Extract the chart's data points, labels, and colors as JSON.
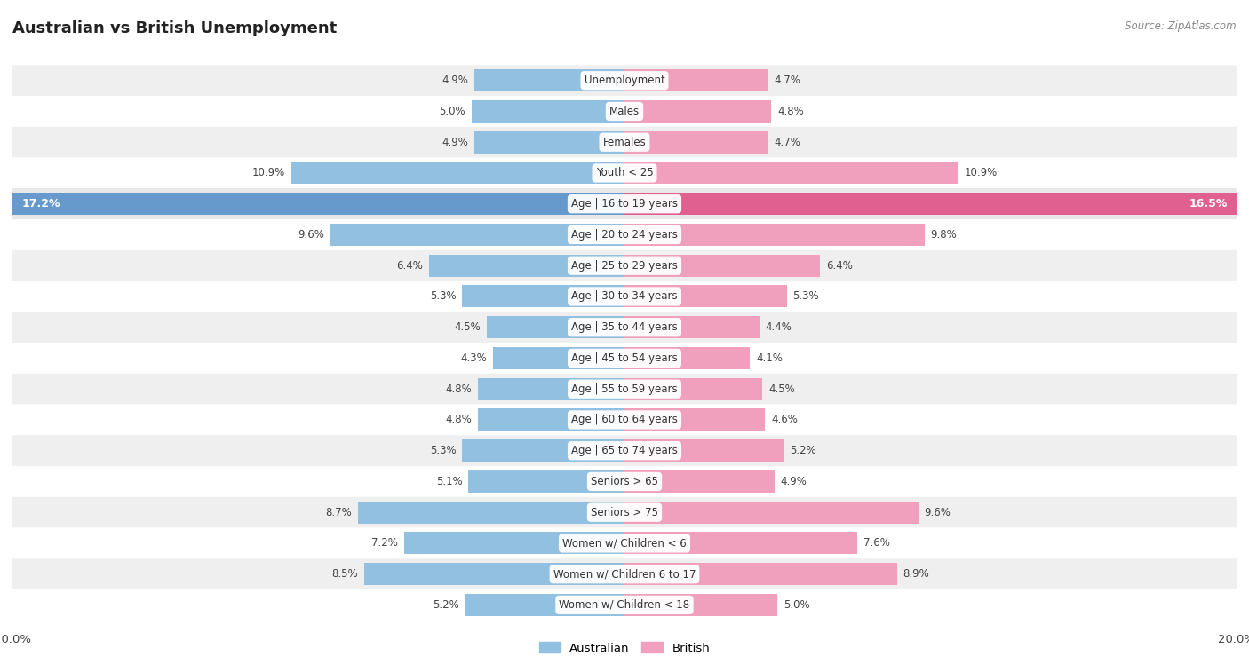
{
  "title": "Australian vs British Unemployment",
  "source": "Source: ZipAtlas.com",
  "categories": [
    "Unemployment",
    "Males",
    "Females",
    "Youth < 25",
    "Age | 16 to 19 years",
    "Age | 20 to 24 years",
    "Age | 25 to 29 years",
    "Age | 30 to 34 years",
    "Age | 35 to 44 years",
    "Age | 45 to 54 years",
    "Age | 55 to 59 years",
    "Age | 60 to 64 years",
    "Age | 65 to 74 years",
    "Seniors > 65",
    "Seniors > 75",
    "Women w/ Children < 6",
    "Women w/ Children 6 to 17",
    "Women w/ Children < 18"
  ],
  "australian": [
    4.9,
    5.0,
    4.9,
    10.9,
    17.2,
    9.6,
    6.4,
    5.3,
    4.5,
    4.3,
    4.8,
    4.8,
    5.3,
    5.1,
    8.7,
    7.2,
    8.5,
    5.2
  ],
  "british": [
    4.7,
    4.8,
    4.7,
    10.9,
    16.5,
    9.8,
    6.4,
    5.3,
    4.4,
    4.1,
    4.5,
    4.6,
    5.2,
    4.9,
    9.6,
    7.6,
    8.9,
    5.0
  ],
  "aus_color": "#92c0e0",
  "brit_color": "#f0a0bc",
  "aus_highlight_color": "#6699cc",
  "brit_highlight_color": "#e06090",
  "row_bg_light": "#efefef",
  "row_bg_white": "#ffffff",
  "highlight_row_bg": "#e8e8e8",
  "xlim": 20.0,
  "legend_labels": [
    "Australian",
    "British"
  ]
}
